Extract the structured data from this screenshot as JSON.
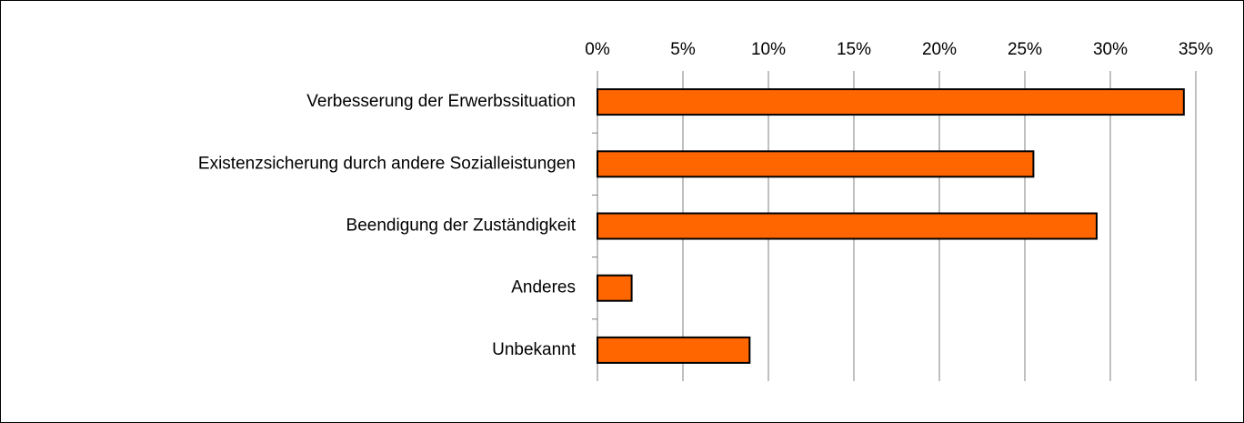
{
  "chart_data": {
    "type": "barh",
    "categories": [
      "Verbesserung der Erwerbssituation",
      "Existenzsicherung durch andere Sozialleistungen",
      "Beendigung der Zuständigkeit",
      "Anderes",
      "Unbekannt"
    ],
    "values": [
      34.3,
      25.5,
      29.2,
      2.0,
      8.9
    ],
    "color": "#ff6600",
    "xlim": [
      0,
      35
    ],
    "xticks": [
      {
        "value": 0,
        "label": "0%"
      },
      {
        "value": 5,
        "label": "5%"
      },
      {
        "value": 10,
        "label": "10%"
      },
      {
        "value": 15,
        "label": "15%"
      },
      {
        "value": 20,
        "label": "20%"
      },
      {
        "value": 25,
        "label": "25%"
      },
      {
        "value": 30,
        "label": "30%"
      },
      {
        "value": 35,
        "label": "35%"
      }
    ],
    "grid": true
  }
}
